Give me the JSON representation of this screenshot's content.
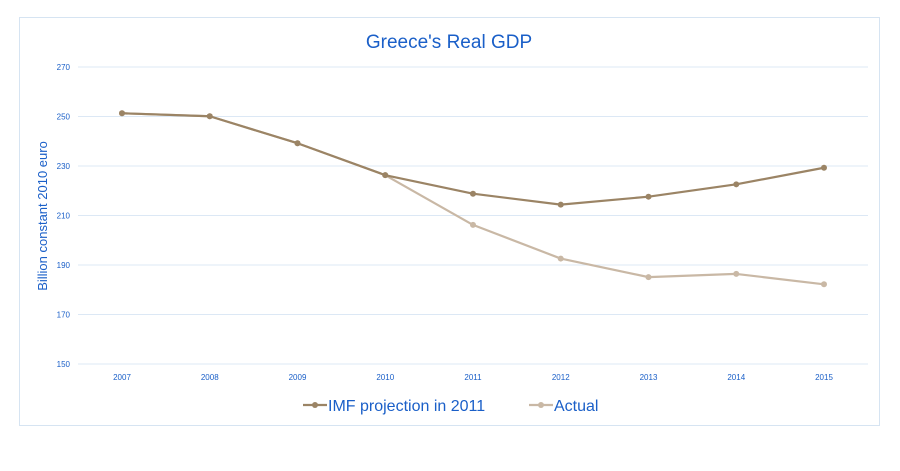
{
  "chart_data": {
    "type": "line",
    "title": "Greece's Real GDP",
    "xlabel": "",
    "ylabel": "Billion constant 2010 euro",
    "categories": [
      "2007",
      "2008",
      "2009",
      "2010",
      "2011",
      "2012",
      "2013",
      "2014",
      "2015"
    ],
    "y_ticks": [
      150,
      170,
      190,
      210,
      230,
      250,
      270
    ],
    "ylim": [
      150,
      270
    ],
    "grid": true,
    "legend_position": "bottom",
    "series": [
      {
        "name": "IMF projection in 2011",
        "color": "#9b8465",
        "values": [
          251.3,
          250.1,
          239.2,
          226.3,
          218.8,
          214.4,
          217.6,
          222.6,
          229.3
        ]
      },
      {
        "name": "Actual",
        "color": "#c9b8a5",
        "values": [
          251.3,
          250.1,
          239.2,
          226.3,
          206.2,
          192.6,
          185.1,
          186.4,
          182.2
        ]
      }
    ],
    "colors": {
      "text": "#1a5fc8",
      "grid": "#dce8f5",
      "frame": "#d6e4f2"
    }
  }
}
